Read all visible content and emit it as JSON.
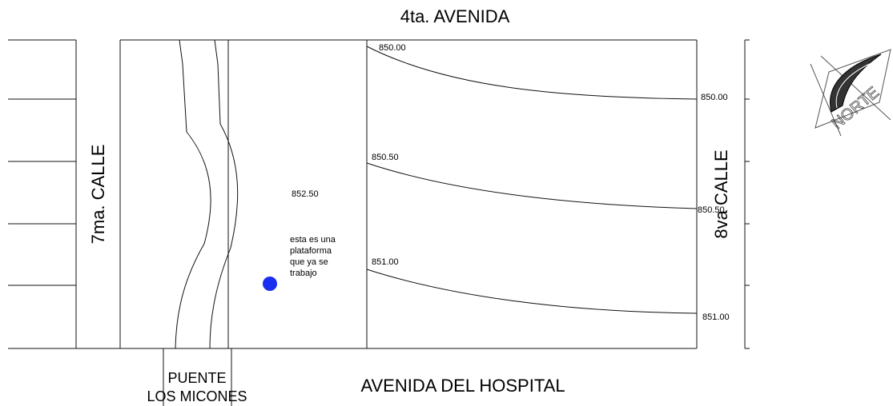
{
  "streets": {
    "north": "4ta. AVENIDA",
    "west": "7ma. CALLE",
    "east": "8va CALLE",
    "south": "AVENIDA DEL HOSPITAL"
  },
  "bridge": {
    "line1": "PUENTE",
    "line2": "LOS MICONES"
  },
  "contours": {
    "c850_00_left": "850.00",
    "c850_00_right": "850.00",
    "c850_50_left": "850.50",
    "c850_50_right": "850.50",
    "c851_00_left": "851.00",
    "c851_00_right": "851.00"
  },
  "platform": {
    "elevation": "852.50",
    "note": [
      "esta es una",
      "plataforma",
      "que ya se",
      "trabajo"
    ],
    "marker_color": "#1a2ef0"
  },
  "north_arrow": {
    "label": "NORTE"
  }
}
